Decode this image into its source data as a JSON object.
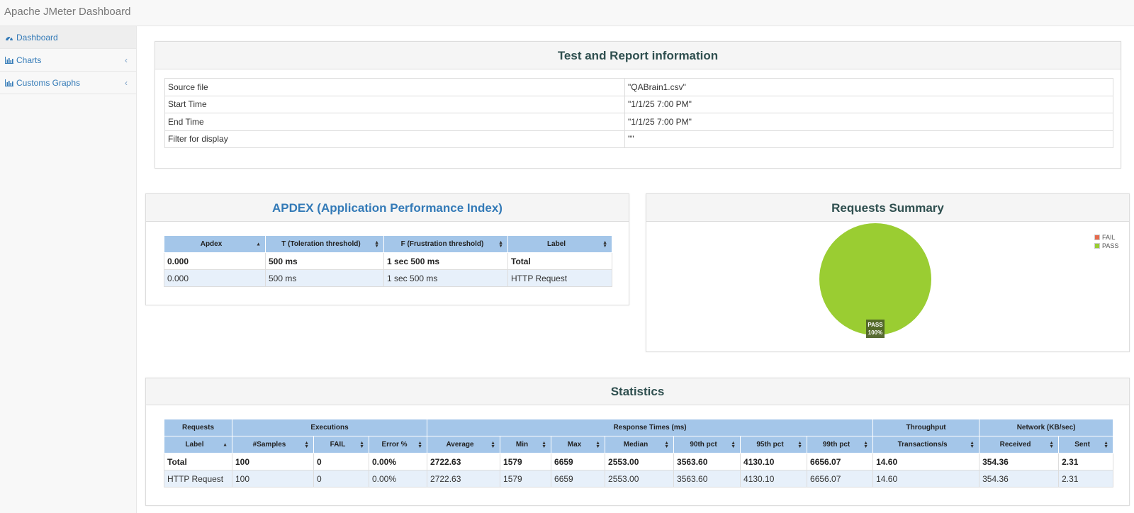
{
  "app": {
    "title": "Apache JMeter Dashboard"
  },
  "sidebar": {
    "items": [
      {
        "label": "Dashboard",
        "icon": "dashboard-icon",
        "active": true
      },
      {
        "label": "Charts",
        "icon": "bar-chart-icon",
        "has_submenu": true
      },
      {
        "label": "Customs Graphs",
        "icon": "bar-chart-icon",
        "has_submenu": true
      }
    ],
    "chevron": "‹"
  },
  "test_info": {
    "title": "Test and Report information",
    "rows": [
      {
        "key": "Source file",
        "value": "\"QABrain1.csv\""
      },
      {
        "key": "Start Time",
        "value": "\"1/1/25 7:00 PM\""
      },
      {
        "key": "End Time",
        "value": "\"1/1/25 7:00 PM\""
      },
      {
        "key": "Filter for display",
        "value": "\"\""
      }
    ]
  },
  "apdex": {
    "title": "APDEX (Application Performance Index)",
    "title_color": "#337ab7",
    "headers": [
      "Apdex",
      "T (Toleration threshold)",
      "F (Frustration threshold)",
      "Label"
    ],
    "rows": [
      [
        "0.000",
        "500 ms",
        "1 sec 500 ms",
        "Total"
      ],
      [
        "0.000",
        "500 ms",
        "1 sec 500 ms",
        "HTTP Request"
      ]
    ]
  },
  "requests_summary": {
    "title": "Requests Summary",
    "legend": [
      {
        "label": "FAIL",
        "color": "#e66a4d"
      },
      {
        "label": "PASS",
        "color": "#9acd32"
      }
    ],
    "slice_label": "PASS",
    "slice_value": "100%",
    "pass_fraction": 1.0,
    "fail_fraction": 0.0
  },
  "statistics": {
    "title": "Statistics",
    "groups": [
      "Requests",
      "Executions",
      "Response Times (ms)",
      "Throughput",
      "Network (KB/sec)"
    ],
    "columns": [
      "Label",
      "#Samples",
      "FAIL",
      "Error %",
      "Average",
      "Min",
      "Max",
      "Median",
      "90th pct",
      "95th pct",
      "99th pct",
      "Transactions/s",
      "Received",
      "Sent"
    ],
    "rows": [
      [
        "Total",
        "100",
        "0",
        "0.00%",
        "2722.63",
        "1579",
        "6659",
        "2553.00",
        "3563.60",
        "4130.10",
        "6656.07",
        "14.60",
        "354.36",
        "2.31"
      ],
      [
        "HTTP Request",
        "100",
        "0",
        "0.00%",
        "2722.63",
        "1579",
        "6659",
        "2553.00",
        "3563.60",
        "4130.10",
        "6656.07",
        "14.60",
        "354.36",
        "2.31"
      ]
    ]
  }
}
